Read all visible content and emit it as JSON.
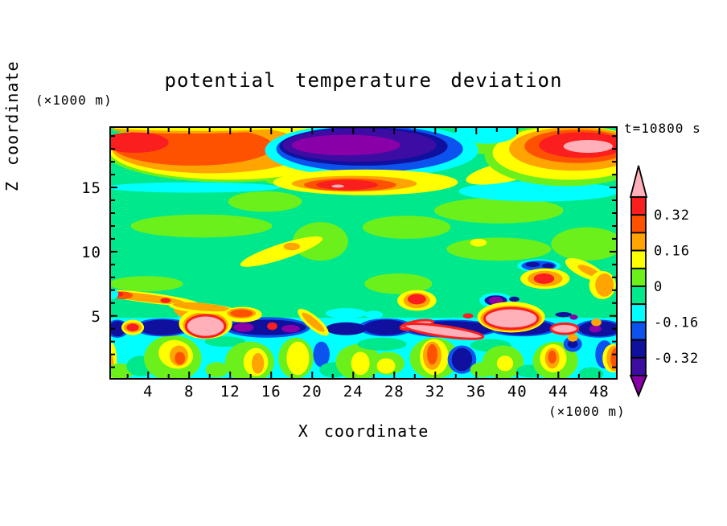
{
  "chart_data": {
    "type": "filled_contour",
    "title": "potential temperature deviation",
    "time_annotation": "t=10800 s",
    "xlabel": "X coordinate",
    "xunit": "(×1000 m)",
    "zlabel": "Z coordinate",
    "zunit": "(×1000 m)",
    "x_range_km": [
      0.3,
      49.7
    ],
    "z_range_km": [
      0.1,
      19.7
    ],
    "x_major_ticks": [
      4,
      8,
      12,
      16,
      20,
      24,
      28,
      32,
      36,
      40,
      44,
      48
    ],
    "x_minor_step": 2,
    "z_major_ticks": [
      5,
      10,
      15
    ],
    "z_minor_step": 1,
    "contour_interval": 0.08,
    "grid": false,
    "colors": {
      "pk": "#FFB0B8",
      "re": "#FA1E1E",
      "od": "#FF5200",
      "or": "#FFA400",
      "ye": "#FFFF00",
      "ch": "#6CF01C",
      "sg": "#00E88C",
      "cy": "#00FFFF",
      "bl": "#0C52EE",
      "na": "#10109E",
      "in": "#3C0CA3",
      "pu": "#8A00A8",
      "frame": "#000000"
    },
    "color_names": {
      "pk": "pink",
      "re": "red",
      "od": "orangered",
      "or": "orange",
      "ye": "yellow",
      "ch": "chartreuse",
      "sg": "springgreen",
      "cy": "cyan",
      "bl": "blue",
      "na": "navy",
      "in": "indigo",
      "pu": "purple"
    },
    "value_bands": {
      "pk": "> 0.40",
      "re": "0.32 to 0.40",
      "od": "0.24 to 0.32",
      "or": "0.16 to 0.24",
      "ye": "0.08 to 0.16",
      "ch": "0 to 0.08",
      "sg": "-0.08 to 0",
      "cy": "-0.16 to -0.08",
      "bl": "-0.24 to -0.16",
      "na": "-0.32 to -0.24",
      "in": "-0.40 to -0.32",
      "pu": "< -0.40"
    },
    "background_band": "sg",
    "colorbar": {
      "segment_colors": [
        "re",
        "od",
        "or",
        "ye",
        "ch",
        "sg",
        "cy",
        "bl",
        "na",
        "in"
      ],
      "top_arrow": "pk",
      "bottom_arrow": "pu",
      "tick_labels": [
        {
          "text": "0.32",
          "boundary": 1
        },
        {
          "text": "0.16",
          "boundary": 3
        },
        {
          "text": "0",
          "boundary": 5
        },
        {
          "text": "-0.16",
          "boundary": 7
        },
        {
          "text": "-0.32",
          "boundary": 9
        }
      ]
    },
    "features": [
      [
        "cy",
        25,
        2.45,
        24.8,
        2.4,
        0,
        "",
        "r"
      ],
      [
        "ye",
        0.45,
        1.5,
        0.5,
        1.4
      ],
      [
        "or",
        0.35,
        1.2,
        0.3,
        0.8
      ],
      [
        "ch",
        1.3,
        0.7,
        1.4,
        0.6
      ],
      [
        "sg",
        3.3,
        1.1,
        1.4,
        0.8
      ],
      [
        "ch",
        6.4,
        1.7,
        2.8,
        1.8
      ],
      [
        "ye",
        6.7,
        2.0,
        1.7,
        1.1,
        15
      ],
      [
        "or",
        7.0,
        1.9,
        0.9,
        0.8
      ],
      [
        "od",
        7.1,
        1.7,
        0.5,
        0.5
      ],
      [
        "sg",
        11.5,
        3.0,
        2.0,
        0.4
      ],
      [
        "ch",
        10.7,
        0.8,
        1.1,
        0.6
      ],
      [
        "ch",
        13.9,
        1.4,
        2.4,
        1.6
      ],
      [
        "ye",
        14.5,
        1.4,
        1.2,
        1.1
      ],
      [
        "or",
        14.7,
        1.3,
        0.6,
        0.8
      ],
      [
        "ch",
        18.4,
        1.7,
        1.7,
        1.6
      ],
      [
        "ye",
        18.6,
        1.7,
        1.1,
        1.3
      ],
      [
        "bl",
        20.9,
        2.0,
        0.8,
        1.0
      ],
      [
        "sg",
        22.1,
        0.8,
        1.4,
        0.6
      ],
      [
        "ch",
        24.5,
        1.4,
        2.2,
        1.4
      ],
      [
        "ye",
        24.7,
        1.3,
        0.9,
        0.9
      ],
      [
        "sg",
        26.8,
        2.8,
        2.4,
        0.5
      ],
      [
        "ch",
        27.4,
        1.3,
        1.6,
        0.9
      ],
      [
        "ye",
        27.2,
        1.1,
        0.9,
        0.6
      ],
      [
        "ch",
        31.9,
        1.7,
        2.4,
        1.6
      ],
      [
        "ye",
        31.9,
        1.8,
        1.4,
        1.4
      ],
      [
        "or",
        31.7,
        1.9,
        0.9,
        1.1
      ],
      [
        "od",
        31.7,
        2.0,
        0.5,
        0.8
      ],
      [
        "bl",
        34.6,
        1.6,
        1.4,
        1.1
      ],
      [
        "na",
        34.6,
        1.6,
        1.0,
        0.9
      ],
      [
        "sg",
        37.4,
        2.7,
        2.0,
        0.5
      ],
      [
        "ch",
        38.6,
        1.4,
        2.0,
        1.3
      ],
      [
        "ye",
        38.8,
        1.3,
        0.8,
        0.6
      ],
      [
        "ch",
        36.6,
        0.8,
        1.2,
        0.6
      ],
      [
        "sg",
        41.3,
        0.7,
        1.4,
        0.5
      ],
      [
        "ch",
        43.7,
        1.5,
        2.2,
        1.5
      ],
      [
        "ye",
        43.5,
        1.7,
        1.3,
        1.1
      ],
      [
        "or",
        43.4,
        1.7,
        0.7,
        0.8
      ],
      [
        "od",
        43.4,
        1.8,
        0.4,
        0.5
      ],
      [
        "bl",
        45.4,
        2.8,
        0.9,
        0.6
      ],
      [
        "na",
        45.4,
        2.8,
        0.5,
        0.3
      ],
      [
        "sg",
        47.2,
        0.5,
        1.2,
        0.5
      ],
      [
        "bl",
        48.5,
        2.0,
        0.9,
        1.1
      ],
      [
        "ye",
        49.3,
        1.7,
        1.0,
        1.1
      ],
      [
        "or",
        49.5,
        1.7,
        0.8,
        1.0
      ],
      [
        "od",
        49.6,
        1.7,
        0.5,
        0.8
      ],
      [
        "bl",
        1.0,
        4.0,
        1.1,
        0.7
      ],
      [
        "bl",
        5.4,
        4.1,
        2.8,
        0.7
      ],
      [
        "bl",
        15.6,
        4.1,
        4.2,
        0.8
      ],
      [
        "bl",
        27.2,
        4.1,
        2.7,
        0.7
      ],
      [
        "bl",
        33.5,
        4.0,
        4.7,
        0.7
      ],
      [
        "bl",
        40.5,
        4.1,
        3.5,
        0.7
      ],
      [
        "bl",
        48.0,
        4.0,
        2.4,
        0.7
      ],
      [
        "na",
        1.0,
        4.0,
        0.8,
        0.6
      ],
      [
        "na",
        5.4,
        4.1,
        2.4,
        0.6
      ],
      [
        "na",
        15.6,
        4.1,
        3.8,
        0.6
      ],
      [
        "na",
        23.3,
        4.0,
        2.0,
        0.5
      ],
      [
        "na",
        27.2,
        4.1,
        2.2,
        0.6
      ],
      [
        "na",
        33.5,
        4.0,
        4.3,
        0.6
      ],
      [
        "na",
        40.5,
        4.1,
        3.0,
        0.6
      ],
      [
        "na",
        48.0,
        4.0,
        2.0,
        0.6
      ],
      [
        "pu",
        13.3,
        4.1,
        1.0,
        0.35
      ],
      [
        "pu",
        17.9,
        4.0,
        0.9,
        0.3
      ],
      [
        "pu",
        32.7,
        4.0,
        1.0,
        0.3
      ],
      [
        "pu",
        47.6,
        4.0,
        0.6,
        0.3
      ],
      [
        "ye",
        2.5,
        4.1,
        1.1,
        0.6
      ],
      [
        "or",
        2.5,
        4.1,
        0.9,
        0.4
      ],
      [
        "re",
        2.5,
        4.1,
        0.6,
        0.3
      ],
      [
        "re",
        16.1,
        4.2,
        0.5,
        0.3
      ],
      [
        "ye",
        20.1,
        4.5,
        1.9,
        0.5,
        40
      ],
      [
        "or",
        20.1,
        4.5,
        1.4,
        0.3,
        40
      ],
      [
        "re",
        35.2,
        5.0,
        0.5,
        0.2
      ],
      [
        "or",
        47.7,
        4.5,
        0.5,
        0.3
      ],
      [
        "or",
        45.4,
        3.3,
        0.5,
        0.3
      ],
      [
        "cy",
        23.3,
        5.2,
        2.0,
        0.4
      ],
      [
        "cy",
        26.0,
        5.1,
        0.9,
        0.3
      ],
      [
        "na",
        44.5,
        5.1,
        0.8,
        0.2
      ],
      [
        "pu",
        45.5,
        4.9,
        0.4,
        0.2
      ],
      [
        "cy",
        37.9,
        6.2,
        1.6,
        0.6
      ],
      [
        "na",
        37.9,
        6.2,
        1.1,
        0.4
      ],
      [
        "pu",
        37.9,
        6.2,
        0.7,
        0.3
      ],
      [
        "na",
        39.7,
        6.3,
        0.5,
        0.2
      ],
      [
        "cy",
        8.2,
        5.0,
        1.3,
        0.5
      ],
      [
        "na",
        8.2,
        5.0,
        0.9,
        0.35
      ],
      [
        "pu",
        8.2,
        5.0,
        0.55,
        0.22
      ],
      [
        "or",
        7.6,
        5.1,
        1.2,
        0.3,
        25
      ],
      [
        "ye",
        9.6,
        4.4,
        2.6,
        1.2
      ],
      [
        "or",
        9.6,
        4.3,
        2.2,
        1.0
      ],
      [
        "pk",
        9.6,
        4.2,
        1.9,
        0.85,
        0,
        "re"
      ],
      [
        "pk",
        30.2,
        4.3,
        1.6,
        0.3,
        -10,
        "re"
      ],
      [
        "pk",
        32.8,
        3.8,
        3.9,
        0.4,
        8,
        "re"
      ],
      [
        "ye",
        39.4,
        4.9,
        3.3,
        1.2
      ],
      [
        "or",
        39.4,
        4.8,
        3.0,
        1.0
      ],
      [
        "pk",
        39.4,
        4.8,
        2.6,
        0.8,
        0,
        "re"
      ],
      [
        "pk",
        44.6,
        4.0,
        1.3,
        0.4,
        0,
        "re"
      ],
      [
        "ch",
        9.2,
        12.0,
        6.9,
        0.9
      ],
      [
        "ch",
        3.8,
        7.5,
        3.6,
        0.6
      ],
      [
        "ch",
        15.4,
        13.9,
        3.6,
        0.8
      ],
      [
        "ch",
        20.8,
        10.8,
        2.7,
        1.5
      ],
      [
        "ch",
        38.2,
        13.2,
        6.3,
        1.0
      ],
      [
        "ch",
        29.2,
        11.9,
        4.3,
        0.9
      ],
      [
        "ch",
        38.2,
        10.2,
        5.1,
        0.9
      ],
      [
        "ch",
        46.8,
        10.6,
        3.5,
        1.3
      ],
      [
        "ch",
        28.4,
        7.5,
        3.3,
        0.8
      ],
      [
        "ye",
        17.0,
        10.0,
        4.2,
        0.6,
        -18
      ],
      [
        "or",
        18.0,
        10.4,
        0.8,
        0.3
      ],
      [
        "ye",
        36.2,
        10.7,
        0.8,
        0.3
      ],
      [
        "cy",
        42.1,
        8.9,
        2.1,
        0.5
      ],
      [
        "bl",
        42.1,
        8.9,
        1.7,
        0.4
      ],
      [
        "na",
        41.5,
        9.0,
        0.7,
        0.2
      ],
      [
        "na",
        43.0,
        8.9,
        0.6,
        0.2
      ],
      [
        "ye",
        42.7,
        7.9,
        2.4,
        0.8
      ],
      [
        "or",
        42.7,
        7.9,
        1.7,
        0.6
      ],
      [
        "re",
        42.6,
        7.9,
        1.0,
        0.4
      ],
      [
        "ye",
        46.6,
        8.6,
        2.1,
        0.6,
        25
      ],
      [
        "or",
        47.0,
        8.5,
        1.2,
        0.3,
        25
      ],
      [
        "ye",
        48.3,
        7.4,
        1.3,
        1.1
      ],
      [
        "or",
        48.5,
        7.4,
        0.9,
        0.9
      ],
      [
        "ye",
        30.2,
        6.2,
        1.9,
        0.8
      ],
      [
        "or",
        30.2,
        6.2,
        1.3,
        0.6
      ],
      [
        "re",
        30.2,
        6.3,
        0.9,
        0.4
      ],
      [
        "ye",
        4.1,
        6.4,
        4.9,
        0.4,
        7
      ],
      [
        "or",
        3.7,
        6.4,
        3.9,
        0.3,
        7
      ],
      [
        "od",
        1.5,
        6.6,
        1.0,
        0.3
      ],
      [
        "re",
        1.0,
        6.7,
        0.6,
        0.2
      ],
      [
        "re",
        5.7,
        6.2,
        0.5,
        0.2
      ],
      [
        "ye",
        9.3,
        5.6,
        3.3,
        0.4,
        5
      ],
      [
        "or",
        9.2,
        5.7,
        2.8,
        0.3,
        5
      ],
      [
        "ye",
        13.2,
        5.1,
        1.9,
        0.6
      ],
      [
        "or",
        13.1,
        5.2,
        1.4,
        0.4
      ],
      [
        "od",
        13.1,
        5.2,
        1.1,
        0.3
      ],
      [
        "cy",
        0.5,
        6.7,
        0.6,
        0.4
      ],
      [
        "cy",
        8.4,
        15.0,
        8.5,
        0.4
      ],
      [
        "cy",
        42.1,
        14.7,
        7.8,
        0.8
      ],
      [
        "cy",
        30.3,
        15.7,
        3.5,
        0.4,
        12
      ],
      [
        "ch",
        16.6,
        16.1,
        1.6,
        0.9
      ],
      [
        "ch",
        36.6,
        18.3,
        2.2,
        0.7
      ],
      [
        "ch",
        11.9,
        18.0,
        12.4,
        2.6
      ],
      [
        "ye",
        11.9,
        18.0,
        11.8,
        2.4
      ],
      [
        "or",
        10.1,
        18.0,
        9.6,
        1.9
      ],
      [
        "od",
        8.4,
        18.2,
        7.8,
        1.5
      ],
      [
        "re",
        2.7,
        18.5,
        3.3,
        0.8
      ],
      [
        "or",
        8.0,
        19.5,
        7.5,
        0.3
      ],
      [
        "ye",
        8.8,
        19.7,
        8.6,
        0.3
      ],
      [
        "cy",
        25.8,
        17.9,
        10.4,
        2.1
      ],
      [
        "bl",
        25.6,
        18.0,
        9.1,
        1.8
      ],
      [
        "na",
        25.0,
        18.2,
        8.2,
        1.5
      ],
      [
        "in",
        24.6,
        18.3,
        7.5,
        1.3
      ],
      [
        "pu",
        23.3,
        18.3,
        5.3,
        0.8
      ],
      [
        "ye",
        39.4,
        16.3,
        4.5,
        0.8,
        -12
      ],
      [
        "ch",
        44.8,
        17.5,
        8.0,
        2.4
      ],
      [
        "ye",
        45.1,
        17.7,
        7.5,
        2.1
      ],
      [
        "or",
        45.6,
        18.0,
        6.4,
        1.7
      ],
      [
        "od",
        45.9,
        18.2,
        5.2,
        1.3
      ],
      [
        "re",
        46.3,
        18.3,
        4.2,
        1.0
      ],
      [
        "pk",
        46.9,
        18.2,
        2.4,
        0.5
      ],
      [
        "cy",
        37.0,
        19.3,
        3.0,
        0.9
      ],
      [
        "ye",
        25.2,
        15.4,
        9.0,
        1.0
      ],
      [
        "or",
        24.1,
        15.3,
        6.1,
        0.6
      ],
      [
        "od",
        23.7,
        15.2,
        4.5,
        0.5
      ],
      [
        "re",
        23.4,
        15.2,
        3.0,
        0.4
      ],
      [
        "pk",
        22.5,
        15.1,
        0.6,
        0.12
      ]
    ]
  }
}
